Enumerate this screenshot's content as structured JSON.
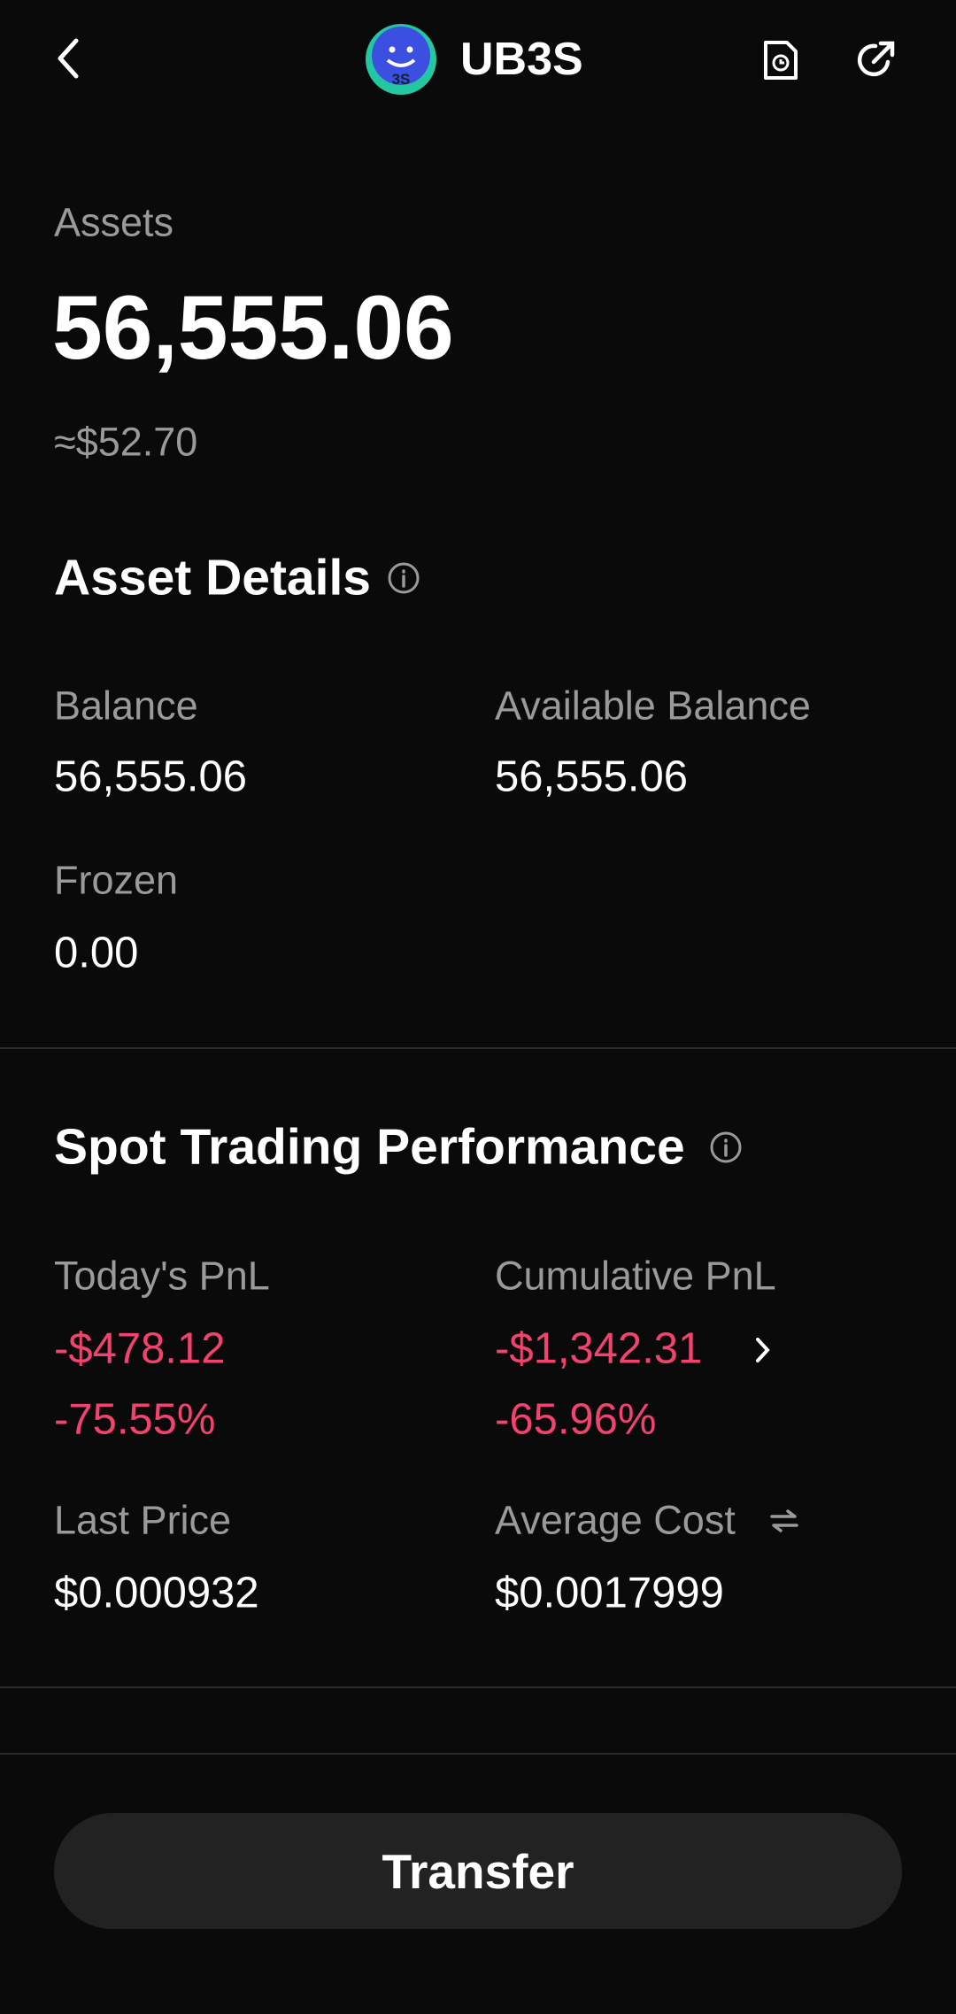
{
  "header": {
    "title": "UB3S",
    "logo_text": "3S"
  },
  "assets": {
    "label": "Assets",
    "value": "56,555.06",
    "usd": "≈$52.70"
  },
  "details": {
    "title": "Asset Details",
    "items": [
      {
        "label": "Balance",
        "value": "56,555.06"
      },
      {
        "label": "Available Balance",
        "value": "56,555.06"
      },
      {
        "label": "Frozen",
        "value": "0.00"
      }
    ]
  },
  "performance": {
    "title": "Spot Trading Performance",
    "items": [
      {
        "label": "Today's PnL",
        "value": "-$478.12",
        "percent": "-75.55%"
      },
      {
        "label": "Cumulative PnL",
        "value": "-$1,342.31",
        "percent": "-65.96%"
      },
      {
        "label": "Last Price",
        "value": "$0.000932"
      },
      {
        "label": "Average Cost",
        "value": "$0.0017999"
      }
    ]
  },
  "button": {
    "label": "Transfer"
  }
}
